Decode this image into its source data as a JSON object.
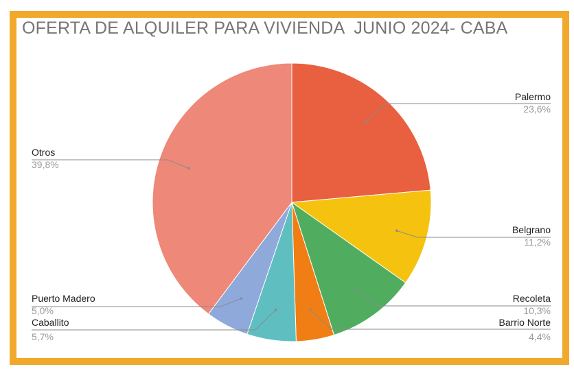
{
  "chart_data": {
    "type": "pie",
    "title": "OFERTA DE ALQUILER PARA VIVIENDA  JUNIO 2024- CABA",
    "slices": [
      {
        "label": "Palermo",
        "value": 23.6,
        "pct_text": "23,6%",
        "color": "#e8603f",
        "side": "right"
      },
      {
        "label": "Belgrano",
        "value": 11.2,
        "pct_text": "11,2%",
        "color": "#f5c20f",
        "side": "right"
      },
      {
        "label": "Recoleta",
        "value": 10.3,
        "pct_text": "10,3%",
        "color": "#50ad5f",
        "side": "right"
      },
      {
        "label": "Barrio Norte",
        "value": 4.4,
        "pct_text": "4,4%",
        "color": "#f07e14",
        "side": "right"
      },
      {
        "label": "Caballito",
        "value": 5.7,
        "pct_text": "5,7%",
        "color": "#5fbfc0",
        "side": "left"
      },
      {
        "label": "Puerto Madero",
        "value": 5.0,
        "pct_text": "5,0%",
        "color": "#8fa9db",
        "side": "left"
      },
      {
        "label": "Otros",
        "value": 39.8,
        "pct_text": "39,8%",
        "color": "#ee8878",
        "side": "left"
      }
    ],
    "legend": "none",
    "border_color": "#f0a92b"
  }
}
